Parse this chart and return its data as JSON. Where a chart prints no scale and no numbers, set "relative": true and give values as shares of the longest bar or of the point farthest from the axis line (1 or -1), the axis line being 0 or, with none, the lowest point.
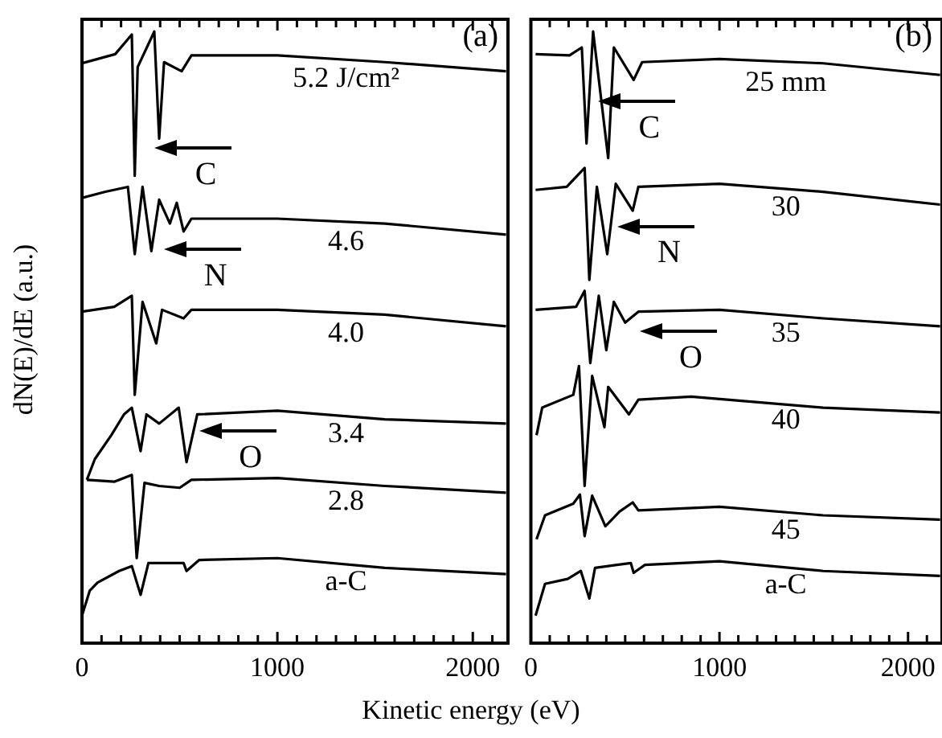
{
  "chart_data": [
    {
      "type": "line",
      "title": "(a)",
      "xlabel": "Kinetic energy (eV)",
      "ylabel": "dN(E)/dE (a.u.)",
      "relative": true,
      "xlim": [
        0,
        2180
      ],
      "xticks": [
        0,
        {
          "value": 100,
          "label": null
        },
        {
          "value": 200,
          "label": null
        },
        {
          "value": 300,
          "label": null
        },
        {
          "value": 400,
          "label": null
        },
        {
          "value": 500,
          "label": null
        },
        {
          "value": 600,
          "label": null
        },
        {
          "value": 700,
          "label": null
        },
        {
          "value": 800,
          "label": null
        },
        {
          "value": 900,
          "label": null
        },
        1000,
        {
          "value": 1100,
          "label": null
        },
        {
          "value": 1200,
          "label": null
        },
        {
          "value": 1300,
          "label": null
        },
        {
          "value": 1400,
          "label": null
        },
        {
          "value": 1500,
          "label": null
        },
        {
          "value": 1600,
          "label": null
        },
        {
          "value": 1700,
          "label": null
        },
        {
          "value": 1800,
          "label": null
        },
        {
          "value": 1900,
          "label": null
        },
        2000,
        {
          "value": 2100,
          "label": null
        }
      ],
      "annotations": [
        "C",
        "N",
        "O"
      ],
      "series": [
        {
          "name": "5.2 J/cm²",
          "color": "#000000",
          "x": [
            0,
            170,
            255,
            270,
            285,
            370,
            395,
            420,
            510,
            560,
            1000,
            1550,
            2170
          ],
          "values": [
            0.948,
            0.963,
            0.995,
            0.764,
            0.942,
            1.0,
            0.825,
            0.95,
            0.935,
            0.961,
            0.961,
            0.95,
            0.935
          ]
        },
        {
          "name": "4.6",
          "color": "#000000",
          "x": [
            0,
            120,
            235,
            270,
            310,
            355,
            395,
            450,
            485,
            520,
            560,
            1000,
            1550,
            2170
          ],
          "values": [
            0.728,
            0.738,
            0.746,
            0.636,
            0.746,
            0.641,
            0.725,
            0.686,
            0.72,
            0.673,
            0.694,
            0.694,
            0.686,
            0.668
          ]
        },
        {
          "name": "4.0",
          "color": "#000000",
          "x": [
            0,
            165,
            255,
            270,
            310,
            380,
            410,
            520,
            560,
            1000,
            1550,
            2170
          ],
          "values": [
            0.542,
            0.55,
            0.568,
            0.406,
            0.558,
            0.49,
            0.545,
            0.531,
            0.545,
            0.545,
            0.537,
            0.518
          ]
        },
        {
          "name": "3.4",
          "color": "#000000",
          "x": [
            25,
            66,
            150,
            215,
            255,
            300,
            330,
            395,
            495,
            535,
            590,
            1000,
            1550,
            2170
          ],
          "values": [
            0.267,
            0.301,
            0.34,
            0.374,
            0.385,
            0.314,
            0.374,
            0.359,
            0.385,
            0.296,
            0.374,
            0.38,
            0.366,
            0.359
          ]
        },
        {
          "name": "2.8",
          "color": "#000000",
          "x": [
            25,
            165,
            255,
            280,
            320,
            395,
            500,
            560,
            1000,
            1550,
            2170
          ],
          "values": [
            0.267,
            0.264,
            0.275,
            0.139,
            0.262,
            0.257,
            0.254,
            0.267,
            0.27,
            0.257,
            0.246
          ]
        },
        {
          "name": "a-C",
          "color": "#000000",
          "x": [
            0,
            40,
            80,
            190,
            255,
            300,
            340,
            520,
            535,
            600,
            1000,
            1550,
            2170
          ],
          "values": [
            0.045,
            0.086,
            0.099,
            0.118,
            0.126,
            0.079,
            0.131,
            0.131,
            0.118,
            0.136,
            0.139,
            0.123,
            0.113
          ]
        }
      ]
    },
    {
      "type": "line",
      "title": "(b)",
      "relative": true,
      "xlim": [
        0,
        2180
      ],
      "xticks": [
        0,
        {
          "value": 100,
          "label": null
        },
        {
          "value": 200,
          "label": null
        },
        {
          "value": 300,
          "label": null
        },
        {
          "value": 400,
          "label": null
        },
        {
          "value": 500,
          "label": null
        },
        {
          "value": 600,
          "label": null
        },
        {
          "value": 700,
          "label": null
        },
        {
          "value": 800,
          "label": null
        },
        {
          "value": 900,
          "label": null
        },
        1000,
        {
          "value": 1100,
          "label": null
        },
        {
          "value": 1200,
          "label": null
        },
        {
          "value": 1300,
          "label": null
        },
        {
          "value": 1400,
          "label": null
        },
        {
          "value": 1500,
          "label": null
        },
        {
          "value": 1600,
          "label": null
        },
        {
          "value": 1700,
          "label": null
        },
        {
          "value": 1800,
          "label": null
        },
        {
          "value": 1900,
          "label": null
        },
        2000,
        {
          "value": 2100,
          "label": null
        }
      ],
      "annotations": [
        "C",
        "N",
        "O"
      ],
      "series": [
        {
          "name": "25 mm",
          "color": "#000000",
          "x": [
            25,
            205,
            270,
            295,
            330,
            410,
            440,
            545,
            590,
            1000,
            1550,
            2170
          ],
          "values": [
            0.963,
            0.961,
            0.974,
            0.817,
            1.0,
            0.793,
            0.974,
            0.921,
            0.95,
            0.955,
            0.948,
            0.929
          ]
        },
        {
          "name": "30",
          "color": "#000000",
          "x": [
            25,
            190,
            285,
            310,
            350,
            405,
            450,
            540,
            570,
            1000,
            1550,
            2170
          ],
          "values": [
            0.741,
            0.746,
            0.777,
            0.594,
            0.746,
            0.636,
            0.751,
            0.707,
            0.746,
            0.751,
            0.738,
            0.717
          ]
        },
        {
          "name": "35",
          "color": "#000000",
          "x": [
            25,
            240,
            285,
            315,
            360,
            400,
            440,
            500,
            570,
            1000,
            1550,
            2170
          ],
          "values": [
            0.545,
            0.55,
            0.576,
            0.458,
            0.568,
            0.479,
            0.558,
            0.524,
            0.542,
            0.545,
            0.531,
            0.518
          ]
        },
        {
          "name": "40",
          "color": "#000000",
          "x": [
            30,
            60,
            225,
            255,
            285,
            325,
            390,
            410,
            520,
            570,
            850,
            1550,
            2170
          ],
          "values": [
            0.34,
            0.385,
            0.406,
            0.453,
            0.257,
            0.437,
            0.353,
            0.419,
            0.374,
            0.398,
            0.403,
            0.385,
            0.377
          ]
        },
        {
          "name": "45",
          "color": "#000000",
          "x": [
            30,
            75,
            225,
            260,
            285,
            325,
            395,
            470,
            540,
            570,
            1000,
            1550,
            2170
          ],
          "values": [
            0.17,
            0.209,
            0.228,
            0.243,
            0.175,
            0.241,
            0.191,
            0.215,
            0.23,
            0.217,
            0.223,
            0.209,
            0.202
          ]
        },
        {
          "name": "a-C",
          "color": "#000000",
          "x": [
            25,
            75,
            195,
            265,
            310,
            340,
            530,
            545,
            605,
            1000,
            1550,
            2170
          ],
          "values": [
            0.045,
            0.097,
            0.105,
            0.118,
            0.073,
            0.123,
            0.131,
            0.115,
            0.128,
            0.134,
            0.118,
            0.11
          ]
        }
      ]
    }
  ]
}
